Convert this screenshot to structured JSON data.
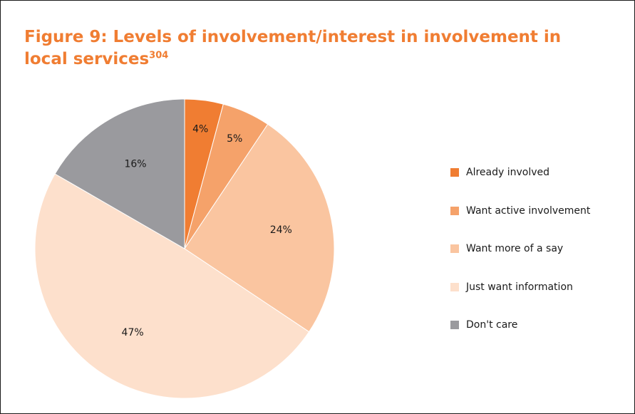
{
  "title": {
    "text": "Figure 9: Levels of involvement/interest in involvement in local services",
    "superscript": "304"
  },
  "colors": {
    "title": "#f07d32",
    "slices": [
      "#f07d32",
      "#f5a26a",
      "#fac5a0",
      "#fde0cc",
      "#9a9a9e"
    ]
  },
  "chart_data": {
    "type": "pie",
    "categories": [
      "Already involved",
      "Want active involvement",
      "Want more of a say",
      "Just want information",
      "Don't care"
    ],
    "values": [
      4,
      5,
      24,
      47,
      16
    ],
    "data_labels": [
      "4%",
      "5%",
      "24%",
      "47%",
      "16%"
    ],
    "legend_position": "right",
    "start_angle": "top (12 o'clock), clockwise"
  }
}
